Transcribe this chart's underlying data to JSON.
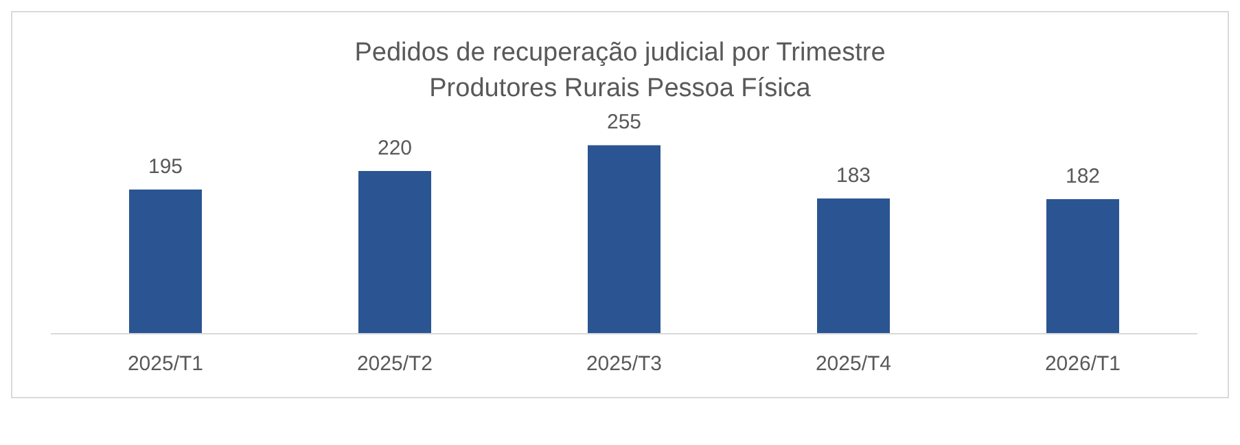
{
  "chart_data": {
    "type": "bar",
    "title": "Pedidos de recuperação judicial por Trimestre",
    "subtitle": "Produtores Rurais Pessoa Física",
    "categories": [
      "2025/T1",
      "2025/T2",
      "2025/T3",
      "2025/T4",
      "2026/T1"
    ],
    "values": [
      195,
      220,
      255,
      183,
      182
    ],
    "color": "#2a5592",
    "data_labels": true
  }
}
